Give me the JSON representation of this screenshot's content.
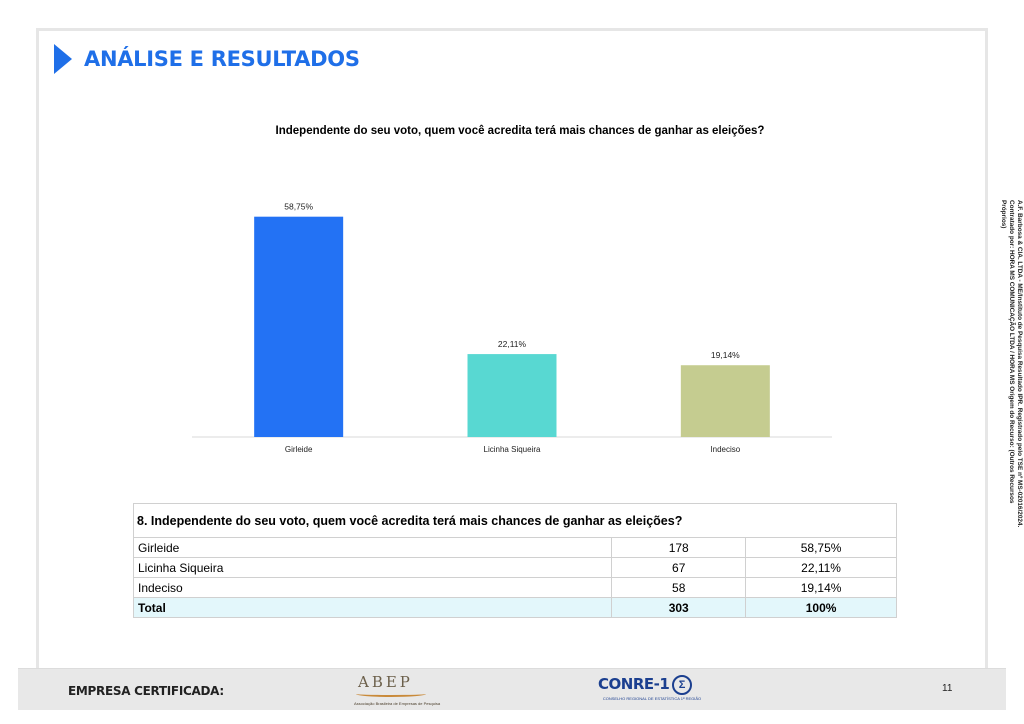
{
  "header": {
    "title": "ANÁLISE E RESULTADOS"
  },
  "chart_data": {
    "type": "bar",
    "title": "Independente do seu voto, quem você acredita terá mais chances de ganhar as eleições?",
    "categories": [
      "Girleide",
      "Licinha Siqueira",
      "Indeciso"
    ],
    "values": [
      58.75,
      22.11,
      19.14
    ],
    "data_labels": [
      "58,75%",
      "22,11%",
      "19,14%"
    ],
    "colors": [
      "#2372f4",
      "#58d8d2",
      "#c5cc90"
    ],
    "xlabel": "",
    "ylabel": "",
    "ylim": [
      0,
      100
    ],
    "grid": false,
    "legend": "none"
  },
  "table": {
    "question": "8. Independente do seu voto, quem você acredita terá mais chances de ganhar as eleições?",
    "rows": [
      {
        "label": "Girleide",
        "count": "178",
        "pct": "58,75%"
      },
      {
        "label": "Licinha Siqueira",
        "count": "67",
        "pct": "22,11%"
      },
      {
        "label": "Indeciso",
        "count": "58",
        "pct": "19,14%"
      }
    ],
    "total": {
      "label": "Total",
      "count": "303",
      "pct": "100%"
    }
  },
  "side_note": {
    "line1": "A.F. Barbosa & CIA. LTDA - ME/Instituto de Pesquisa Resultado IPR. Registrado pelo TSE nº MS-02016/2024.",
    "line2": "Contratado por: HORA MS COMUNICAÇÃO LTDA / HORA MS Origem do Recurso: (Outros Recursos Próprios)"
  },
  "footer": {
    "label": "EMPRESA CERTIFICADA:",
    "abep_logo": "ABEP",
    "abep_sub": "Associação Brasileira de Empresas de Pesquisa",
    "conre_logo": "CONRE-1",
    "conre_seal": "Σ",
    "conre_sub": "CONSELHO REGIONAL DE ESTATÍSTICA 1ª REGIÃO",
    "page_number": "11"
  }
}
